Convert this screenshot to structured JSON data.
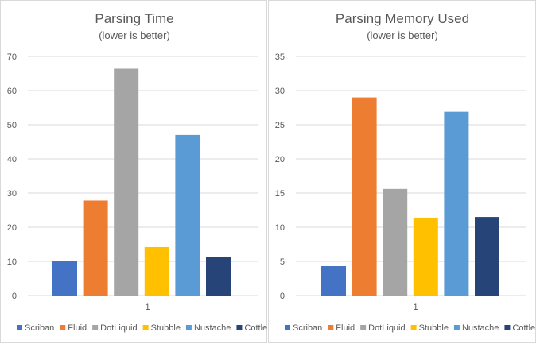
{
  "chart_data": [
    {
      "type": "bar",
      "title": "Parsing Time",
      "subtitle": "(lower is better)",
      "xlabel": "",
      "ylabel": "",
      "categories": [
        "1"
      ],
      "ylim": [
        0,
        70
      ],
      "yticks": [
        0,
        10,
        20,
        30,
        40,
        50,
        60,
        70
      ],
      "grid": true,
      "legend_position": "bottom",
      "series": [
        {
          "name": "Scriban",
          "values": [
            10.2
          ],
          "color": "#4472C4"
        },
        {
          "name": "Fluid",
          "values": [
            27.8
          ],
          "color": "#ED7D31"
        },
        {
          "name": "DotLiquid",
          "values": [
            66.4
          ],
          "color": "#A5A5A5"
        },
        {
          "name": "Stubble",
          "values": [
            14.2
          ],
          "color": "#FFC000"
        },
        {
          "name": "Nustache",
          "values": [
            47.0
          ],
          "color": "#5B9BD5"
        },
        {
          "name": "Cottle",
          "values": [
            11.2
          ],
          "color": "#264478"
        }
      ]
    },
    {
      "type": "bar",
      "title": "Parsing Memory Used",
      "subtitle": "(lower is better)",
      "xlabel": "",
      "ylabel": "",
      "categories": [
        "1"
      ],
      "ylim": [
        0,
        35
      ],
      "yticks": [
        0,
        5,
        10,
        15,
        20,
        25,
        30,
        35
      ],
      "grid": true,
      "legend_position": "bottom",
      "series": [
        {
          "name": "Scriban",
          "values": [
            4.3
          ],
          "color": "#4472C4"
        },
        {
          "name": "Fluid",
          "values": [
            29.0
          ],
          "color": "#ED7D31"
        },
        {
          "name": "DotLiquid",
          "values": [
            15.6
          ],
          "color": "#A5A5A5"
        },
        {
          "name": "Stubble",
          "values": [
            11.4
          ],
          "color": "#FFC000"
        },
        {
          "name": "Nustache",
          "values": [
            26.9
          ],
          "color": "#5B9BD5"
        },
        {
          "name": "Cottle",
          "values": [
            11.5
          ],
          "color": "#264478"
        }
      ]
    }
  ]
}
